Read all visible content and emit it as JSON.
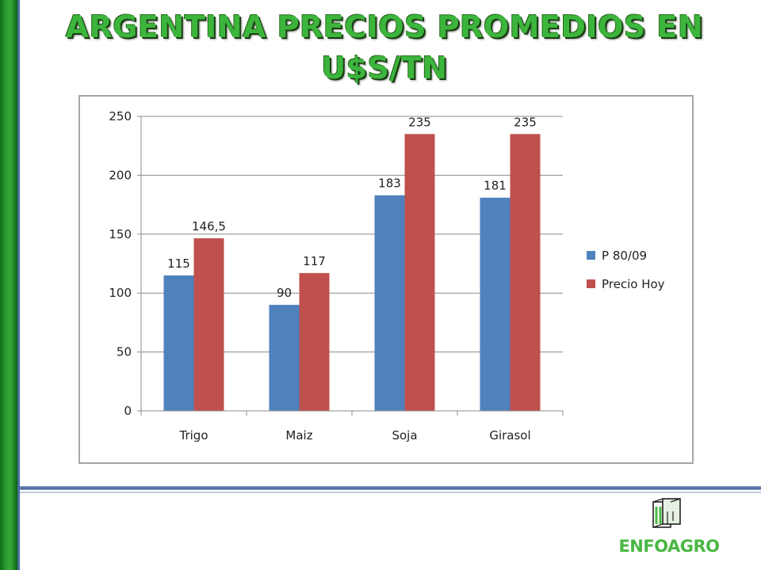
{
  "title": "ARGENTINA PRECIOS PROMEDIOS EN U$S/TN",
  "colors": {
    "series1": "#4f81bd",
    "series2": "#c0504d",
    "title_green": "#3cb53c"
  },
  "logo": {
    "text": "ENFOAGRO",
    "icon": "building-icon"
  },
  "chart_data": {
    "type": "bar",
    "categories": [
      "Trigo",
      "Maiz",
      "Soja",
      "Girasol"
    ],
    "series": [
      {
        "name": "P 80/09",
        "values": [
          115,
          90,
          183,
          181
        ],
        "labels": [
          "115",
          "90",
          "183",
          "181"
        ],
        "color": "#4f81bd"
      },
      {
        "name": "Precio Hoy",
        "values": [
          146.5,
          117,
          235,
          235
        ],
        "labels": [
          "146,5",
          "117",
          "235",
          "235"
        ],
        "color": "#c0504d"
      }
    ],
    "ylim": [
      0,
      250
    ],
    "yticks": [
      0,
      50,
      100,
      150,
      200,
      250
    ],
    "grid": true,
    "legend": "right",
    "xlabel": "",
    "ylabel": ""
  }
}
